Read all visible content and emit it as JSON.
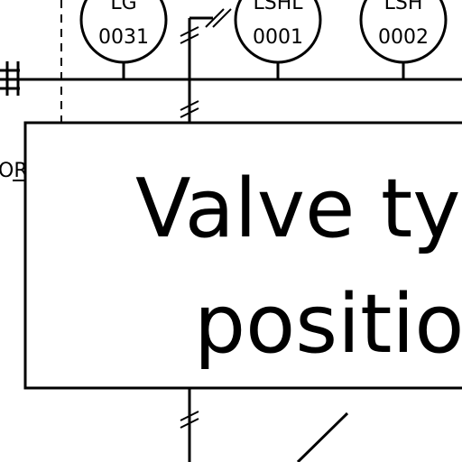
{
  "instruments": [
    {
      "tag": "LG",
      "number": "0031"
    },
    {
      "tag": "LSHL",
      "number": "0001"
    },
    {
      "tag": "LSH",
      "number": "0002"
    }
  ],
  "box": {
    "line1": "Valve typ",
    "line2": "positio"
  },
  "side_label": "OR"
}
